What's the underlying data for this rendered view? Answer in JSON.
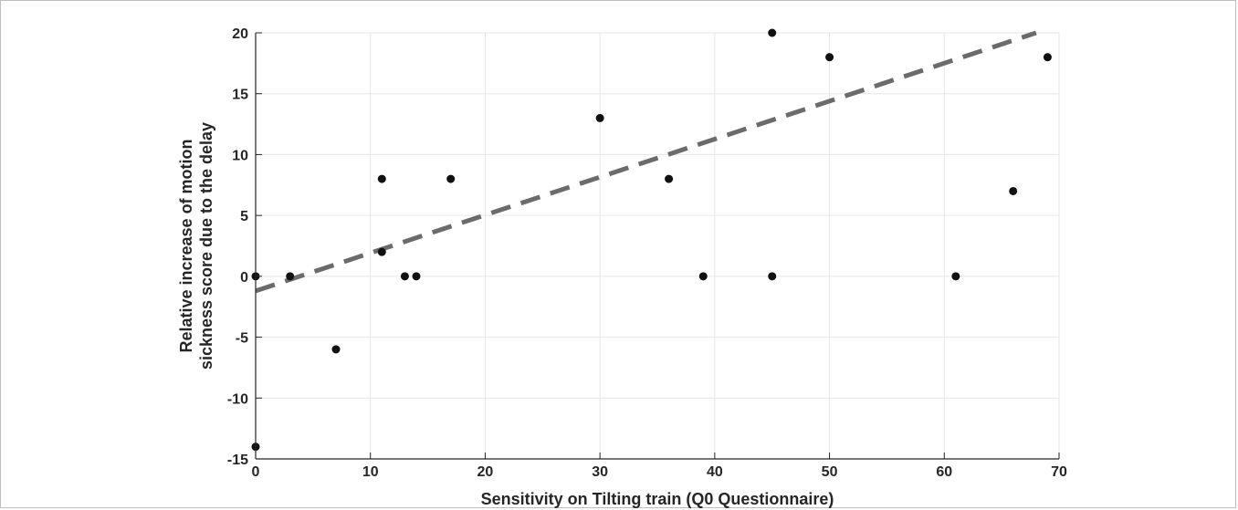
{
  "chart_data": {
    "type": "scatter",
    "title": "",
    "xlabel": "Sensitivity on Tilting train (Q0 Questionnaire)",
    "ylabel_lines": [
      "Relative increase of motion",
      "sickness score due to the delay"
    ],
    "xlim": [
      0,
      70
    ],
    "ylim": [
      -15,
      20
    ],
    "xticks": [
      0,
      10,
      20,
      30,
      40,
      50,
      60,
      70
    ],
    "yticks": [
      -15,
      -10,
      -5,
      0,
      5,
      10,
      15,
      20
    ],
    "grid": true,
    "points": [
      {
        "x": 0,
        "y": 0
      },
      {
        "x": 0,
        "y": -14
      },
      {
        "x": 3,
        "y": 0
      },
      {
        "x": 7,
        "y": -6
      },
      {
        "x": 11,
        "y": 8
      },
      {
        "x": 11,
        "y": 2
      },
      {
        "x": 13,
        "y": 0
      },
      {
        "x": 14,
        "y": 0
      },
      {
        "x": 17,
        "y": 8
      },
      {
        "x": 30,
        "y": 13
      },
      {
        "x": 36,
        "y": 8
      },
      {
        "x": 39,
        "y": 0
      },
      {
        "x": 45,
        "y": 20
      },
      {
        "x": 45,
        "y": 0
      },
      {
        "x": 50,
        "y": 18
      },
      {
        "x": 61,
        "y": 0
      },
      {
        "x": 66,
        "y": 7
      },
      {
        "x": 69,
        "y": 18
      }
    ],
    "trendline": {
      "style": "dashed",
      "color": "#6b6b6b",
      "x": [
        0,
        68
      ],
      "y": [
        -1.2,
        20
      ]
    },
    "colors": {
      "points": "#111111",
      "grid": "#e6e6e6",
      "axis": "#262626"
    }
  }
}
